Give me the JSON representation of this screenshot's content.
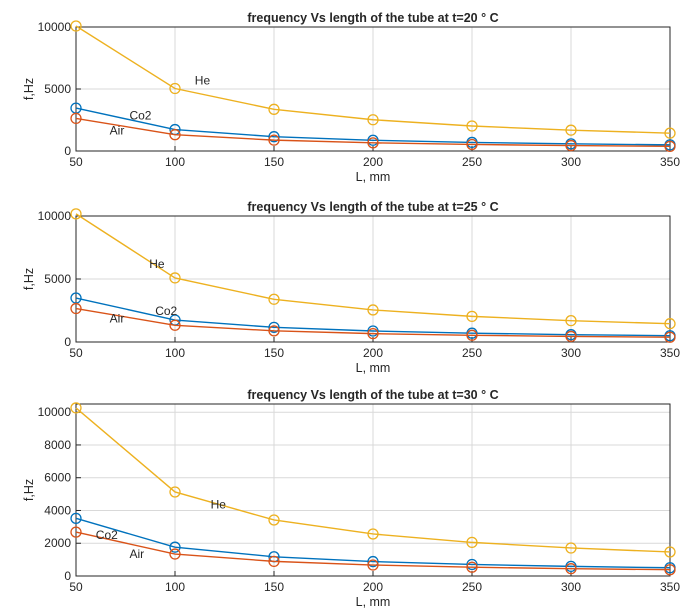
{
  "chart_data": [
    {
      "type": "line",
      "title": "frequency Vs  length of the tube at t=20 ° C",
      "xlabel": "L, mm",
      "ylabel": "f,Hz",
      "x": [
        50,
        100,
        150,
        200,
        250,
        300,
        350
      ],
      "xlim": [
        50,
        350
      ],
      "ylim": [
        0,
        10000
      ],
      "yticks": [
        0,
        5000,
        10000
      ],
      "grid": true,
      "marker": "circle",
      "series": [
        {
          "name": "He",
          "color": "#EDB120",
          "values": [
            10080,
            5040,
            3360,
            2520,
            2016,
            1680,
            1440
          ]
        },
        {
          "name": "Co2",
          "color": "#0072BD",
          "values": [
            3460,
            1730,
            1153,
            865,
            692,
            577,
            494
          ]
        },
        {
          "name": "Air",
          "color": "#D95319",
          "values": [
            2630,
            1315,
            877,
            658,
            526,
            438,
            376
          ]
        }
      ],
      "annotations": [
        {
          "text": "He",
          "x": 110,
          "y": 5700
        },
        {
          "text": "Co2",
          "x": 77,
          "y": 2850
        },
        {
          "text": "Air",
          "x": 67,
          "y": 1650
        }
      ]
    },
    {
      "type": "line",
      "title": "frequency Vs  length of the tube at t=25 ° C",
      "xlabel": "L, mm",
      "ylabel": "f,Hz",
      "x": [
        50,
        100,
        150,
        200,
        250,
        300,
        350
      ],
      "xlim": [
        50,
        350
      ],
      "ylim": [
        0,
        10000
      ],
      "yticks": [
        0,
        5000,
        10000
      ],
      "grid": true,
      "marker": "circle",
      "series": [
        {
          "name": "He",
          "color": "#EDB120",
          "values": [
            10170,
            5085,
            3390,
            2543,
            2034,
            1695,
            1453
          ]
        },
        {
          "name": "Co2",
          "color": "#0072BD",
          "values": [
            3490,
            1745,
            1163,
            873,
            698,
            582,
            499
          ]
        },
        {
          "name": "Air",
          "color": "#D95319",
          "values": [
            2655,
            1328,
            885,
            664,
            531,
            443,
            379
          ]
        }
      ],
      "annotations": [
        {
          "text": "He",
          "x": 87,
          "y": 6200
        },
        {
          "text": "Co2",
          "x": 90,
          "y": 2450
        },
        {
          "text": "Air",
          "x": 67,
          "y": 1850
        }
      ]
    },
    {
      "type": "line",
      "title": "frequency Vs  length of the tube at t=30 ° C",
      "xlabel": "L, mm",
      "ylabel": "f,Hz",
      "x": [
        50,
        100,
        150,
        200,
        250,
        300,
        350
      ],
      "xlim": [
        50,
        350
      ],
      "ylim": [
        0,
        10500
      ],
      "yticks": [
        0,
        2000,
        4000,
        6000,
        8000,
        10000
      ],
      "grid": true,
      "marker": "circle",
      "series": [
        {
          "name": "He",
          "color": "#EDB120",
          "values": [
            10260,
            5130,
            3420,
            2565,
            2052,
            1710,
            1466
          ]
        },
        {
          "name": "Co2",
          "color": "#0072BD",
          "values": [
            3520,
            1760,
            1173,
            880,
            704,
            587,
            503
          ]
        },
        {
          "name": "Air",
          "color": "#D95319",
          "values": [
            2680,
            1340,
            893,
            670,
            536,
            447,
            383
          ]
        }
      ],
      "annotations": [
        {
          "text": "He",
          "x": 118,
          "y": 4350
        },
        {
          "text": "Co2",
          "x": 60,
          "y": 2500
        },
        {
          "text": "Air",
          "x": 77,
          "y": 1350
        }
      ]
    }
  ]
}
